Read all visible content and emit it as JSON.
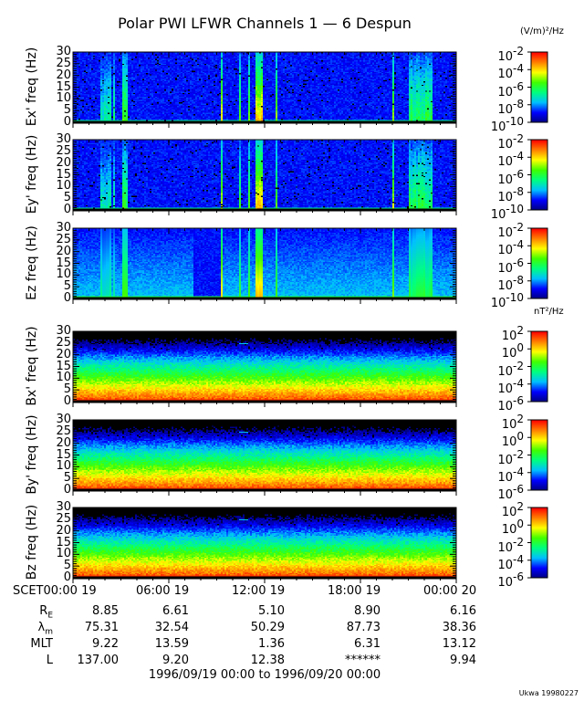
{
  "chart_data": {
    "type": "heatmap",
    "title": "Polar PWI LFWR Channels 1 — 6 Despun",
    "x_range": [
      "1996/09/19 00:00",
      "1996/09/20 00:00"
    ],
    "x_tick_labels": [
      "SCET00:00 19",
      "06:00 19",
      "12:00 19",
      "18:00 19",
      "00:00 20"
    ],
    "panels": [
      {
        "ylabel": "Ex' freq (Hz)",
        "ylim": [
          0,
          30
        ],
        "yticks": [
          "0",
          "5",
          "10",
          "15",
          "20",
          "25",
          "30"
        ],
        "kind": "E",
        "colorbar": {
          "exponents": [
            "-2",
            "-4",
            "-6",
            "-8",
            "-10"
          ],
          "range_log10": [
            -10,
            -2
          ]
        }
      },
      {
        "ylabel": "Ey' freq (Hz)",
        "ylim": [
          0,
          30
        ],
        "yticks": [
          "0",
          "5",
          "10",
          "15",
          "20",
          "25",
          "30"
        ],
        "kind": "E",
        "colorbar": {
          "exponents": [
            "-2",
            "-4",
            "-6",
            "-8",
            "-10"
          ],
          "range_log10": [
            -10,
            -2
          ]
        }
      },
      {
        "ylabel": "Ez freq (Hz)",
        "ylim": [
          0,
          30
        ],
        "yticks": [
          "0",
          "5",
          "10",
          "15",
          "20",
          "25",
          "30"
        ],
        "kind": "Ez",
        "colorbar": {
          "exponents": [
            "-2",
            "-4",
            "-6",
            "-8",
            "-10"
          ],
          "range_log10": [
            -10,
            -2
          ]
        }
      },
      {
        "ylabel": "Bx' freq (Hz)",
        "ylim": [
          0,
          30
        ],
        "yticks": [
          "0",
          "5",
          "10",
          "15",
          "20",
          "25",
          "30"
        ],
        "kind": "B",
        "colorbar": {
          "exponents": [
            "2",
            "0",
            "-2",
            "-4",
            "-6"
          ],
          "range_log10": [
            -6,
            2
          ]
        }
      },
      {
        "ylabel": "By' freq (Hz)",
        "ylim": [
          0,
          30
        ],
        "yticks": [
          "0",
          "5",
          "10",
          "15",
          "20",
          "25",
          "30"
        ],
        "kind": "B",
        "colorbar": {
          "exponents": [
            "2",
            "0",
            "-2",
            "-4",
            "-6"
          ],
          "range_log10": [
            -6,
            2
          ]
        }
      },
      {
        "ylabel": "Bz freq (Hz)",
        "ylim": [
          0,
          30
        ],
        "yticks": [
          "0",
          "5",
          "10",
          "15",
          "20",
          "25",
          "30"
        ],
        "kind": "B",
        "colorbar": {
          "exponents": [
            "2",
            "0",
            "-2",
            "-4",
            "-6"
          ],
          "range_log10": [
            -6,
            2
          ]
        }
      }
    ],
    "units": {
      "electric": "(V/m)²/Hz",
      "magnetic": "nT²/Hz"
    },
    "colormap": [
      "#000080",
      "#0000ff",
      "#00c0ff",
      "#00ff80",
      "#40ff00",
      "#ffff00",
      "#ff8000",
      "#ff0000"
    ]
  },
  "ephemeris": {
    "rows": [
      {
        "label": "R",
        "sub": "E",
        "values": [
          "8.85",
          "6.61",
          "5.10",
          "8.90",
          "6.16"
        ]
      },
      {
        "label": "λ",
        "sub": "m",
        "values": [
          "75.31",
          "32.54",
          "50.29",
          "87.73",
          "38.36"
        ]
      },
      {
        "label": "MLT",
        "sub": "",
        "values": [
          "9.22",
          "13.59",
          "1.36",
          "6.31",
          "13.12"
        ]
      },
      {
        "label": "L",
        "sub": "",
        "values": [
          "137.00",
          "9.20",
          "12.38",
          "******",
          "9.94"
        ]
      }
    ]
  },
  "time_range": "1996/09/19 00:00 to 1996/09/20 00:00",
  "credit": "Ukwa 19980227"
}
